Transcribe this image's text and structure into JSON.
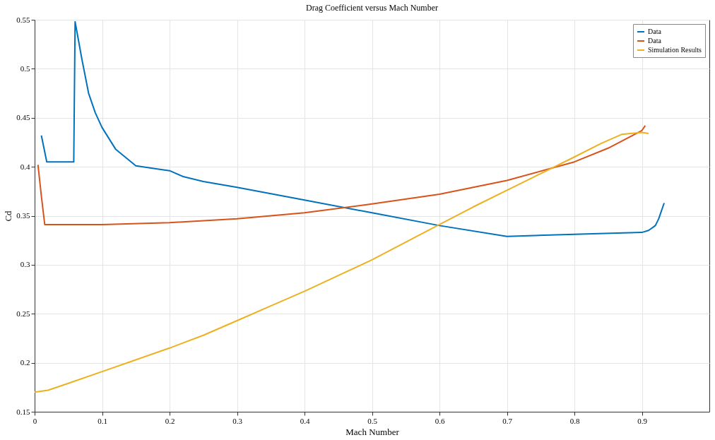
{
  "chart_data": {
    "type": "line",
    "title": "Drag Coefficient versus Mach Number",
    "xlabel": "Mach Number",
    "ylabel": "Cd",
    "xlim": [
      0,
      1
    ],
    "xticks": [
      0,
      0.1,
      0.2,
      0.3,
      0.4,
      0.5,
      0.6,
      0.7,
      0.8,
      0.9
    ],
    "ylim": [
      0.15,
      0.55
    ],
    "yticks": [
      0.15,
      0.2,
      0.25,
      0.3,
      0.35,
      0.4,
      0.45,
      0.5,
      0.55
    ],
    "grid": true,
    "legend": "top right",
    "line_style": "solid",
    "series": [
      {
        "name": "Data",
        "color": "#0072bd",
        "x": [
          0.01,
          0.018,
          0.03,
          0.045,
          0.058,
          0.06,
          0.07,
          0.08,
          0.09,
          0.1,
          0.12,
          0.15,
          0.18,
          0.2,
          0.22,
          0.25,
          0.3,
          0.4,
          0.5,
          0.6,
          0.7,
          0.8,
          0.9,
          0.91,
          0.92,
          0.925,
          0.933
        ],
        "values": [
          0.432,
          0.405,
          0.405,
          0.405,
          0.405,
          0.548,
          0.51,
          0.475,
          0.455,
          0.44,
          0.418,
          0.401,
          0.398,
          0.396,
          0.39,
          0.385,
          0.379,
          0.366,
          0.353,
          0.34,
          0.329,
          0.331,
          0.333,
          0.335,
          0.34,
          0.347,
          0.363
        ]
      },
      {
        "name": "Data",
        "color": "#d95319",
        "x": [
          0.005,
          0.01,
          0.015,
          0.1,
          0.2,
          0.3,
          0.4,
          0.5,
          0.6,
          0.7,
          0.8,
          0.85,
          0.9,
          0.905
        ],
        "values": [
          0.402,
          0.37,
          0.341,
          0.341,
          0.343,
          0.347,
          0.353,
          0.362,
          0.372,
          0.386,
          0.405,
          0.419,
          0.437,
          0.442
        ]
      },
      {
        "name": "Simulation Results",
        "color": "#edb120",
        "x": [
          0,
          0.02,
          0.05,
          0.1,
          0.15,
          0.2,
          0.25,
          0.3,
          0.35,
          0.4,
          0.45,
          0.5,
          0.55,
          0.6,
          0.65,
          0.7,
          0.75,
          0.8,
          0.84,
          0.87,
          0.9,
          0.91
        ],
        "values": [
          0.17,
          0.172,
          0.179,
          0.191,
          0.203,
          0.215,
          0.228,
          0.243,
          0.258,
          0.273,
          0.289,
          0.305,
          0.323,
          0.341,
          0.359,
          0.376,
          0.393,
          0.41,
          0.424,
          0.433,
          0.435,
          0.434
        ]
      }
    ]
  }
}
